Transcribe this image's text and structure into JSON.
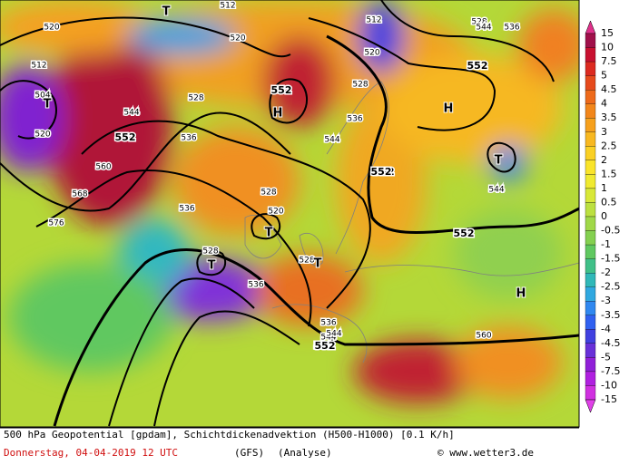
{
  "map": {
    "contour_labels": [
      "520",
      "512",
      "512",
      "520",
      "504",
      "520",
      "528",
      "536",
      "544",
      "552",
      "560",
      "568",
      "576",
      "528",
      "536",
      "552",
      "520",
      "528",
      "536",
      "544",
      "552",
      "544",
      "552",
      "528",
      "536",
      "552",
      "560",
      "528",
      "536",
      "544",
      "552",
      "512",
      "520",
      "528",
      "536",
      "544",
      "552",
      "544",
      "552",
      "560"
    ],
    "pressure_centers": [
      "T",
      "T",
      "H",
      "H",
      "T",
      "T",
      "T",
      "T",
      "H"
    ]
  },
  "legend": {
    "labels": [
      "15",
      "10",
      "7.5",
      "5",
      "4.5",
      "4",
      "3.5",
      "3",
      "2.5",
      "2",
      "1.5",
      "1",
      "0.5",
      "0",
      "-0.5",
      "-1",
      "-1.5",
      "-2",
      "-2.5",
      "-3",
      "-3.5",
      "-4",
      "-4.5",
      "-5",
      "-7.5",
      "-10",
      "-15"
    ],
    "colors": [
      "#e0308a",
      "#a0104a",
      "#c81030",
      "#dc2a20",
      "#e64a1c",
      "#ee6a1a",
      "#f2861a",
      "#f6a01c",
      "#f8b820",
      "#fad024",
      "#fae42a",
      "#f0ea30",
      "#d8e838",
      "#bce040",
      "#a0d848",
      "#84d050",
      "#60c860",
      "#40c088",
      "#30b8b8",
      "#30a8e0",
      "#3088f0",
      "#3060f0",
      "#4040e0",
      "#6830d8",
      "#9020d8",
      "#b020e0",
      "#d030e0",
      "#e040e8"
    ]
  },
  "footer": {
    "line1": "500 hPa Geopotential [gpdam], Schichtdickenadvektion (H500-H1000) [0.1 K/h]",
    "date": "Donnerstag, 04-04-2019   12 UTC",
    "model": "(GFS)",
    "run": "(Analyse)",
    "credit": "© www.wetter3.de"
  }
}
